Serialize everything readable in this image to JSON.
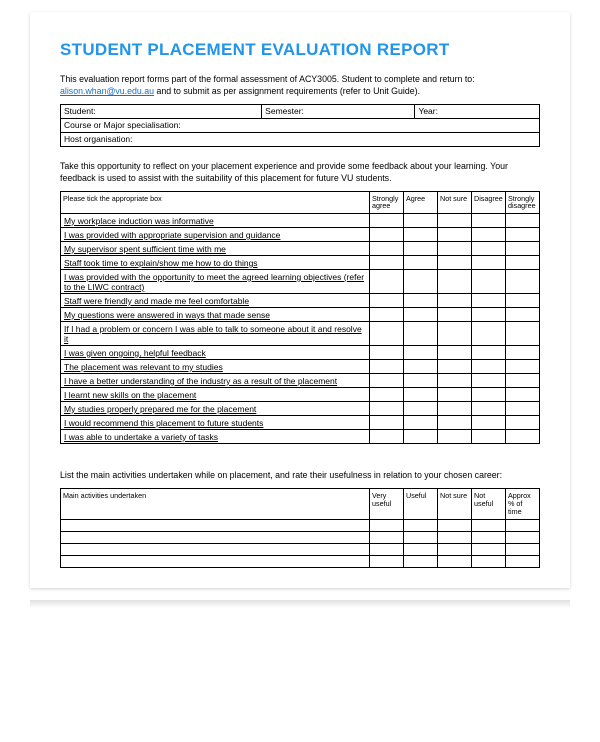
{
  "colors": {
    "title": "#2196e8",
    "link": "#1a6fc4",
    "border": "#000000",
    "page_bg": "#ffffff",
    "body_bg": "#ffffff"
  },
  "typography": {
    "title_fontsize": 17,
    "body_fontsize": 8.8,
    "table_fontsize": 8.5,
    "header_fontsize": 7.2,
    "font_family": "Arial"
  },
  "title": "STUDENT PLACEMENT EVALUATION REPORT",
  "intro": {
    "pre": "This evaluation report forms part of the formal assessment of ACY3005. Student to complete and return to: ",
    "link": "alison.whan@vu.edu.au",
    "post": " and to submit as per assignment requirements (refer to Unit Guide)."
  },
  "info": {
    "student_label": "Student:",
    "semester_label": "Semester:",
    "year_label": "Year:",
    "course_label": "Course or Major specialisation:",
    "host_label": "Host organisation:"
  },
  "section1_text": "Take this opportunity to reflect on your placement experience and provide some feedback about your learning. Your feedback is used to assist with the suitability of this placement for future VU students.",
  "likert": {
    "prompt": "Please tick the appropriate box",
    "headers": [
      "Strongly agree",
      "Agree",
      "Not sure",
      "Disagree",
      "Strongly disagree"
    ],
    "questions": [
      "My workplace induction was informative",
      "I was provided with appropriate supervision and guidance",
      "My supervisor spent sufficient time with me",
      "Staff took time to explain/show me how to do things",
      "I was provided with the opportunity to meet the agreed learning objectives (refer to the LIWC contract)",
      "Staff were friendly and made me feel comfortable",
      "My questions were answered in ways that made sense",
      "If I had a problem or concern I was able to talk to someone about it and resolve it",
      "I was given ongoing, helpful feedback",
      "The placement was relevant to my studies",
      "I have a better understanding of the industry as a result of the placement",
      "I learnt new skills on the placement",
      "My studies properly prepared me for the placement",
      "I would recommend this placement to future students",
      "I was able to undertake a variety of tasks"
    ]
  },
  "section2_text": "List the main activities undertaken while on placement, and rate their usefulness in relation to your chosen career:",
  "activities": {
    "prompt": "Main activities undertaken",
    "headers": [
      "Very useful",
      "Useful",
      "Not sure",
      "Not useful",
      "Approx % of time"
    ],
    "row_count": 4
  }
}
